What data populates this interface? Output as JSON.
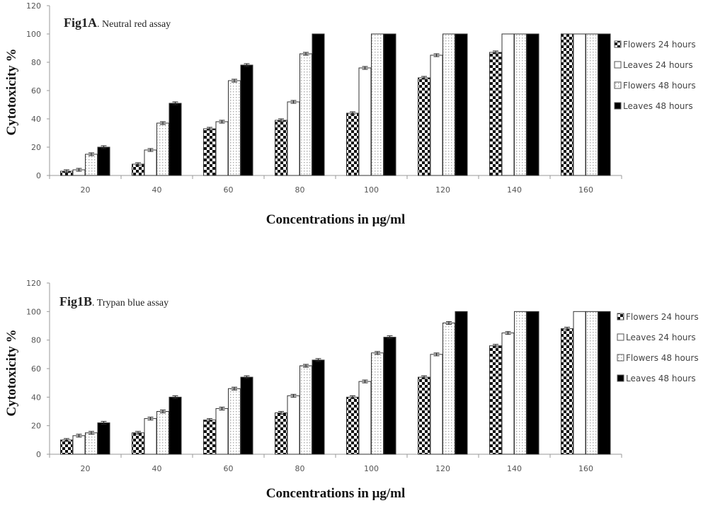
{
  "chart_data": [
    {
      "type": "bar",
      "title_bold": "Fig1A",
      "title_rest": ". Neutral red assay",
      "xlabel": "Concentrations in μg/ml",
      "ylabel": "Cytotoxicity %",
      "ylim": [
        0,
        120
      ],
      "yticks": [
        0,
        20,
        40,
        60,
        80,
        100,
        120
      ],
      "categories": [
        "20",
        "40",
        "60",
        "80",
        "100",
        "120",
        "140",
        "160"
      ],
      "legend_position": "right",
      "series": [
        {
          "name": "Flowers 24 hours",
          "pattern": "checker",
          "values": [
            3,
            8,
            33,
            39,
            44,
            69,
            87,
            100
          ]
        },
        {
          "name": "Leaves 24 hours",
          "pattern": "white",
          "values": [
            4,
            18,
            38,
            52,
            76,
            85,
            100,
            100
          ]
        },
        {
          "name": "Flowers 48 hours",
          "pattern": "dots",
          "values": [
            15,
            37,
            67,
            86,
            100,
            100,
            100,
            100
          ]
        },
        {
          "name": "Leaves 48 hours",
          "pattern": "black",
          "values": [
            20,
            51,
            78,
            100,
            100,
            100,
            100,
            100
          ]
        }
      ]
    },
    {
      "type": "bar",
      "title_bold": "Fig1B",
      "title_rest": ". Trypan blue assay",
      "xlabel": "Concentrations in μg/ml",
      "ylabel": "Cytotoxicity %",
      "ylim": [
        0,
        120
      ],
      "yticks": [
        0,
        20,
        40,
        60,
        80,
        100,
        120
      ],
      "categories": [
        "20",
        "40",
        "60",
        "80",
        "100",
        "120",
        "140",
        "160"
      ],
      "legend_position": "right",
      "series": [
        {
          "name": "Flowers 24 hours",
          "pattern": "checker",
          "values": [
            10,
            15,
            24,
            29,
            40,
            54,
            76,
            88
          ]
        },
        {
          "name": "Leaves 24 hours",
          "pattern": "white",
          "values": [
            13,
            25,
            32,
            41,
            51,
            70,
            85,
            100
          ]
        },
        {
          "name": "Flowers 48 hours",
          "pattern": "dots",
          "values": [
            15,
            30,
            46,
            62,
            71,
            92,
            100,
            100
          ]
        },
        {
          "name": "Leaves 48 hours",
          "pattern": "black",
          "values": [
            22,
            40,
            54,
            66,
            82,
            100,
            100,
            100
          ]
        }
      ]
    }
  ]
}
